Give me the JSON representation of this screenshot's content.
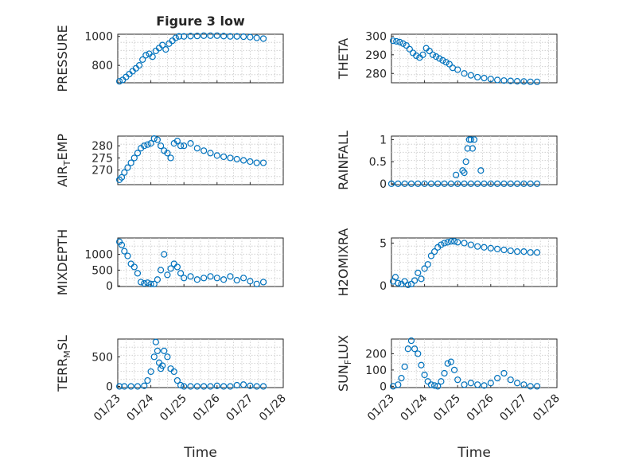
{
  "colors": {
    "marker": "#0072bd",
    "axis": "#262626",
    "grid": "#c8c8c8"
  },
  "chart_data": {
    "type": "scatter",
    "title": "Figure 3 low",
    "xlabel": "Time",
    "marker": "circle-open",
    "x_ticks": [
      "01/23",
      "01/24",
      "01/25",
      "01/26",
      "01/27",
      "01/28"
    ],
    "xlim": [
      0,
      5
    ],
    "grid": true,
    "panels": [
      {
        "name": "pressure",
        "ylabel": "PRESSURE",
        "ylim": [
          680,
          1015
        ],
        "yticks": [
          800,
          1000
        ],
        "series": [
          {
            "x": [
              0.05,
              0.15,
              0.25,
              0.35,
              0.45,
              0.55,
              0.65,
              0.75,
              0.85,
              0.95,
              1.05,
              1.15,
              1.25,
              1.35,
              1.45,
              1.55,
              1.65,
              1.75,
              1.85,
              2.0,
              2.2,
              2.4,
              2.6,
              2.8,
              3.0,
              3.2,
              3.4,
              3.6,
              3.8,
              4.0,
              4.2,
              4.4
            ],
            "y": [
              690,
              700,
              720,
              740,
              760,
              780,
              800,
              840,
              870,
              880,
              860,
              900,
              920,
              940,
              910,
              950,
              970,
              990,
              1000,
              1000,
              1002,
              1003,
              1005,
              1005,
              1005,
              1002,
              1000,
              1000,
              998,
              995,
              990,
              985
            ]
          }
        ]
      },
      {
        "name": "theta",
        "ylabel": "THETA",
        "ylim": [
          275,
          301
        ],
        "yticks": [
          280,
          290,
          300
        ],
        "series": [
          {
            "x": [
              0.05,
              0.15,
              0.25,
              0.35,
              0.45,
              0.55,
              0.65,
              0.75,
              0.85,
              0.95,
              1.05,
              1.15,
              1.25,
              1.35,
              1.45,
              1.55,
              1.65,
              1.75,
              1.85,
              2.0,
              2.2,
              2.4,
              2.6,
              2.8,
              3.0,
              3.2,
              3.4,
              3.6,
              3.8,
              4.0,
              4.2,
              4.4
            ],
            "y": [
              297.5,
              297.2,
              296.8,
              296,
              295,
              293,
              291,
              289.5,
              288.5,
              290,
              293.5,
              292,
              290,
              289,
              288,
              287,
              286,
              285,
              283,
              282,
              280,
              279,
              278,
              277.5,
              277,
              276.5,
              276.2,
              276,
              275.8,
              275.7,
              275.5,
              275.5
            ]
          }
        ]
      },
      {
        "name": "air-temp",
        "ylabel": "AIR_TEMP",
        "ylim": [
          264,
          284
        ],
        "yticks": [
          270,
          275,
          280
        ],
        "series": [
          {
            "x": [
              0.05,
              0.12,
              0.2,
              0.3,
              0.4,
              0.5,
              0.6,
              0.7,
              0.8,
              0.9,
              1.0,
              1.1,
              1.2,
              1.3,
              1.4,
              1.5,
              1.6,
              1.7,
              1.8,
              1.9,
              2.0,
              2.2,
              2.4,
              2.6,
              2.8,
              3.0,
              3.2,
              3.4,
              3.6,
              3.8,
              4.0,
              4.2,
              4.4
            ],
            "y": [
              266,
              267,
              269,
              271,
              273,
              275,
              277,
              279,
              280,
              280.5,
              281,
              283,
              282.5,
              280,
              278,
              277,
              275,
              281,
              282,
              280,
              280,
              281,
              279,
              278,
              277,
              276,
              275.5,
              275,
              274.5,
              274,
              273.5,
              273,
              273
            ]
          }
        ]
      },
      {
        "name": "rainfall",
        "ylabel": "RAINFALL",
        "ylim": [
          -0.02,
          1.08
        ],
        "yticks": [
          0,
          0.5,
          1
        ],
        "series": [
          {
            "x": [
              0.0,
              0.2,
              0.4,
              0.6,
              0.8,
              1.0,
              1.2,
              1.4,
              1.6,
              1.8,
              2.0,
              2.2,
              2.4,
              2.6,
              2.8,
              3.0,
              3.2,
              3.4,
              3.6,
              3.8,
              4.0,
              4.2,
              4.4,
              1.95,
              2.15,
              2.2,
              2.25,
              2.3,
              2.35,
              2.4,
              2.45,
              2.5,
              2.7
            ],
            "y": [
              0,
              0,
              0,
              0,
              0,
              0,
              0,
              0,
              0,
              0,
              0,
              0,
              0,
              0,
              0,
              0,
              0,
              0,
              0,
              0,
              0,
              0,
              0,
              0.2,
              0.3,
              0.25,
              0.5,
              0.8,
              1.0,
              1.0,
              0.8,
              1.0,
              0.3
            ]
          }
        ]
      },
      {
        "name": "mixdepth",
        "ylabel": "MIXDEPTH",
        "ylim": [
          -20,
          1520
        ],
        "yticks": [
          0,
          500,
          1000
        ],
        "series": [
          {
            "x": [
              0.05,
              0.12,
              0.2,
              0.3,
              0.4,
              0.5,
              0.6,
              0.7,
              0.8,
              0.9,
              1.0,
              1.1,
              1.2,
              1.3,
              1.4,
              1.5,
              1.6,
              1.7,
              1.8,
              1.9,
              2.0,
              2.2,
              2.4,
              2.6,
              2.8,
              3.0,
              3.2,
              3.4,
              3.6,
              3.8,
              4.0,
              4.2,
              4.4
            ],
            "y": [
              1400,
              1300,
              1100,
              950,
              700,
              600,
              400,
              120,
              80,
              100,
              60,
              60,
              200,
              500,
              1000,
              350,
              550,
              700,
              600,
              400,
              250,
              300,
              200,
              250,
              300,
              250,
              200,
              300,
              180,
              250,
              150,
              60,
              120
            ]
          }
        ]
      },
      {
        "name": "h2omixra",
        "ylabel": "H2OMIXRA",
        "ylim": [
          -0.1,
          5.6
        ],
        "yticks": [
          0,
          5
        ],
        "series": [
          {
            "x": [
              0.05,
              0.12,
              0.2,
              0.3,
              0.4,
              0.5,
              0.6,
              0.7,
              0.8,
              0.9,
              1.0,
              1.1,
              1.2,
              1.3,
              1.4,
              1.5,
              1.6,
              1.7,
              1.8,
              1.9,
              2.0,
              2.2,
              2.4,
              2.6,
              2.8,
              3.0,
              3.2,
              3.4,
              3.6,
              3.8,
              4.0,
              4.2,
              4.4
            ],
            "y": [
              0.5,
              1.0,
              0.3,
              0.2,
              0.5,
              0.1,
              0.2,
              0.6,
              1.5,
              0.8,
              2.0,
              2.5,
              3.5,
              4.0,
              4.5,
              4.8,
              5.0,
              5.1,
              5.2,
              5.2,
              5.1,
              5.0,
              4.8,
              4.6,
              4.5,
              4.4,
              4.3,
              4.2,
              4.1,
              4.0,
              4.0,
              3.9,
              3.9
            ]
          }
        ]
      },
      {
        "name": "terr-msl",
        "ylabel": "TERR_MSL",
        "ylim": [
          -20,
          800
        ],
        "yticks": [
          0,
          500
        ],
        "series": [
          {
            "x": [
              0.05,
              0.2,
              0.4,
              0.6,
              0.8,
              0.9,
              1.0,
              1.1,
              1.15,
              1.2,
              1.25,
              1.3,
              1.35,
              1.4,
              1.5,
              1.6,
              1.7,
              1.8,
              1.9,
              2.0,
              2.2,
              2.4,
              2.6,
              2.8,
              3.0,
              3.2,
              3.4,
              3.6,
              3.8,
              4.0,
              4.2,
              4.4
            ],
            "y": [
              0,
              0,
              0,
              0,
              10,
              100,
              250,
              500,
              750,
              600,
              400,
              300,
              350,
              600,
              500,
              300,
              250,
              100,
              20,
              0,
              0,
              0,
              0,
              0,
              10,
              0,
              0,
              20,
              30,
              10,
              0,
              0
            ]
          }
        ]
      },
      {
        "name": "sun-flux",
        "ylabel": "SUN_FLUX",
        "ylim": [
          -8,
          290
        ],
        "yticks": [
          0,
          100,
          200
        ],
        "series": [
          {
            "x": [
              0.05,
              0.2,
              0.3,
              0.4,
              0.5,
              0.6,
              0.7,
              0.8,
              0.9,
              1.0,
              1.1,
              1.2,
              1.3,
              1.4,
              1.5,
              1.6,
              1.7,
              1.8,
              1.9,
              2.0,
              2.2,
              2.4,
              2.6,
              2.8,
              3.0,
              3.2,
              3.4,
              3.6,
              3.8,
              4.0,
              4.2,
              4.4
            ],
            "y": [
              0,
              10,
              50,
              120,
              230,
              280,
              230,
              200,
              130,
              70,
              30,
              10,
              5,
              0,
              30,
              80,
              140,
              150,
              100,
              40,
              10,
              20,
              10,
              5,
              20,
              50,
              80,
              40,
              20,
              10,
              0,
              0
            ]
          }
        ]
      }
    ]
  }
}
